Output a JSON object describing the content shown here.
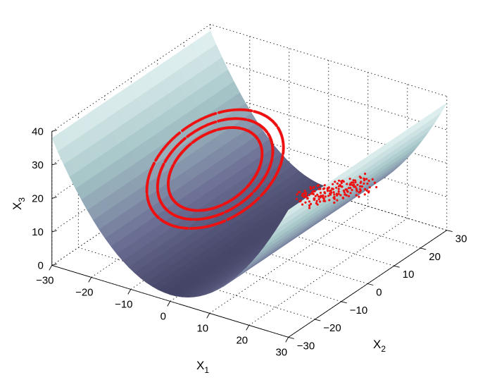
{
  "chart_data": {
    "type": "surface",
    "title": "",
    "surface_function": "x3 = x1^2 / 25 + 2",
    "colormap": [
      "#3d3d5e",
      "#6d7095",
      "#a6c6c8",
      "#e2f1f1"
    ],
    "trajectory_color": "#ee1111",
    "axes": {
      "x1": {
        "label": "X",
        "subscript": "1",
        "range": [
          -30,
          30
        ],
        "ticks": [
          -30,
          -20,
          -10,
          0,
          10,
          20,
          30
        ],
        "tick_labels": [
          "−30",
          "−20",
          "−10",
          "0",
          "10",
          "20",
          "30"
        ]
      },
      "x2": {
        "label": "X",
        "subscript": "2",
        "range": [
          -30,
          30
        ],
        "ticks": [
          -30,
          -20,
          -10,
          0,
          10,
          20,
          30
        ],
        "tick_labels": [
          "−30",
          "−20",
          "−10",
          "0",
          "10",
          "20",
          "30"
        ]
      },
      "x3": {
        "label": "X",
        "subscript": "3",
        "range": [
          0,
          40
        ],
        "ticks": [
          0,
          10,
          20,
          30,
          40
        ],
        "tick_labels": [
          "0",
          "10",
          "20",
          "30",
          "40"
        ]
      }
    },
    "grid": true,
    "trajectory": {
      "loops": [
        {
          "center": [
            -6,
            -4
          ],
          "radius": 11,
          "x3_low": 14,
          "x3_high": 33
        },
        {
          "center": [
            -6,
            -4
          ],
          "radius": 13.5,
          "x3_low": 12,
          "x3_high": 35
        },
        {
          "center": [
            -6,
            -4
          ],
          "radius": 16,
          "x3_low": 10,
          "x3_high": 37
        }
      ],
      "tail": {
        "x1_range": [
          5,
          13
        ],
        "x2_range": [
          12,
          26
        ],
        "x3": [
          8,
          12
        ]
      }
    }
  }
}
